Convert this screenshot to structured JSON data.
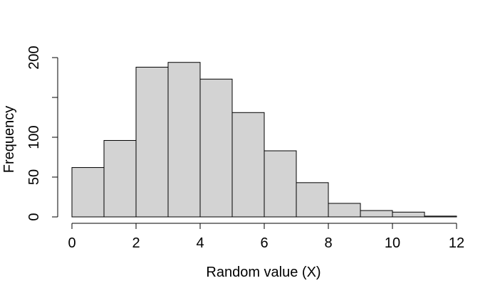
{
  "chart_data": {
    "type": "bar",
    "subtype": "histogram",
    "bin_edges": [
      0,
      1,
      2,
      3,
      4,
      5,
      6,
      7,
      8,
      9,
      10,
      11,
      12
    ],
    "values": [
      62,
      96,
      188,
      194,
      173,
      131,
      83,
      43,
      17,
      8,
      6,
      1
    ],
    "xlabel": "Random value (X)",
    "ylabel": "Frequency",
    "xlim": [
      0,
      12
    ],
    "ylim": [
      0,
      200
    ],
    "x_ticks": [
      0,
      2,
      4,
      6,
      8,
      10,
      12
    ],
    "y_ticks": [
      0,
      50,
      100,
      150,
      200
    ],
    "y_tick_labels": [
      "0",
      "50",
      "100",
      "",
      "200"
    ],
    "grid": false,
    "bar_fill": "#d3d3d3",
    "bar_stroke": "#000000"
  }
}
